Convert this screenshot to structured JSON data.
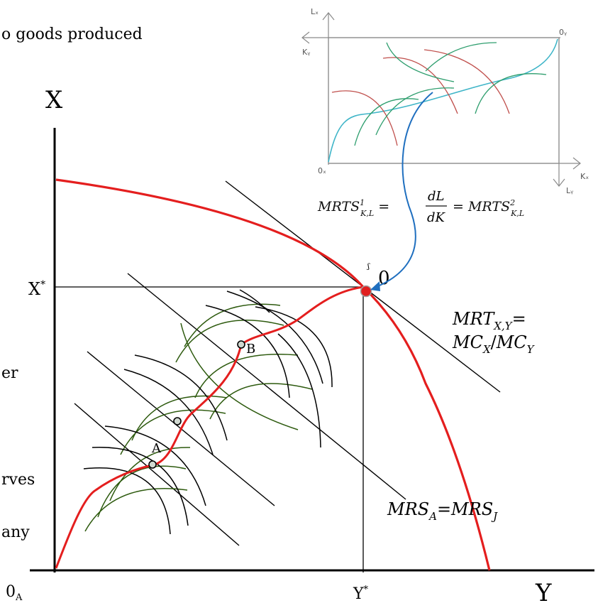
{
  "header_fragment": "o goods produced",
  "side_fragments": [
    "er",
    "rves",
    "any"
  ],
  "axes": {
    "x_title": "X",
    "y_title": "Y",
    "x_star": "X*",
    "y_star": "Y*",
    "origin": "0A"
  },
  "points": {
    "a_label": "A",
    "b_label": "B",
    "endpoint_label": "0"
  },
  "equations": {
    "mrt_line1": "MRT X,Y =",
    "mrt_line2": "MC X / MC Y",
    "mrs": "MRS A = MRS J",
    "mrts": "MRTS¹ K,L = dL/dK = MRTS² K,L"
  },
  "inset": {
    "lx": "Lₓ",
    "oy": "0ᵧ",
    "ky": "Kᵧ",
    "ox": "0ₓ",
    "kx": "Kₓ",
    "ly": "Lᵧ"
  },
  "colors": {
    "ppf": "#e41e1e",
    "tangent": "#000000",
    "indiff_j": "#000000",
    "indiff_a": "#2d5a0e",
    "inset_contract": "#3fb5c8",
    "inset_iso_red": "#c0504d",
    "inset_iso_green": "#2e9e6e",
    "arrow": "#1f6fbf",
    "point_fill": "#d0d8d0",
    "endpoint_fill": "#e02020"
  }
}
